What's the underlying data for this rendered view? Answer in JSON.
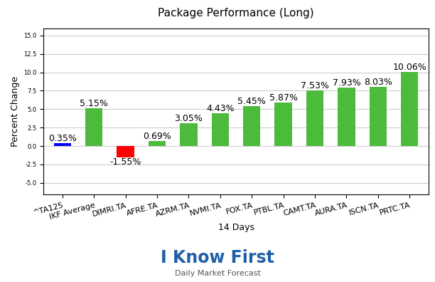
{
  "chart_data": {
    "type": "bar",
    "title": "Package Performance (Long)",
    "x_label": "14 Days",
    "y_label": "Percent Change",
    "categories": [
      "^TA125",
      "IKF Average",
      "DIMRI.TA",
      "AFRE.TA",
      "AZRM.TA",
      "NVMI.TA",
      "FOX.TA",
      "PTBL.TA",
      "CAMT.TA",
      "AURA.TA",
      "ISCN.TA",
      "PRTC.TA"
    ],
    "values": [
      0.35,
      5.15,
      -1.55,
      0.69,
      3.05,
      4.43,
      5.45,
      5.87,
      7.53,
      7.93,
      8.03,
      10.06
    ],
    "value_labels": [
      "0.35%",
      "5.15%",
      "-1.55%",
      "0.69%",
      "3.05%",
      "4.43%",
      "5.45%",
      "5.87%",
      "7.53%",
      "7.93%",
      "8.03%",
      "10.06%"
    ],
    "colors": [
      "#0000ff",
      "#4cbb3c",
      "#ff0000",
      "#4cbb3c",
      "#4cbb3c",
      "#4cbb3c",
      "#4cbb3c",
      "#4cbb3c",
      "#4cbb3c",
      "#4cbb3c",
      "#4cbb3c",
      "#4cbb3c"
    ],
    "data_labels": true,
    "ylim": [
      -6.6,
      16
    ],
    "yticks": [
      -5.0,
      -2.5,
      0.0,
      2.5,
      5.0,
      7.5,
      10.0,
      12.5,
      15.0
    ],
    "grid": true,
    "logo": {
      "name": "I Know First",
      "tagline": "Daily Market Forecast"
    }
  }
}
